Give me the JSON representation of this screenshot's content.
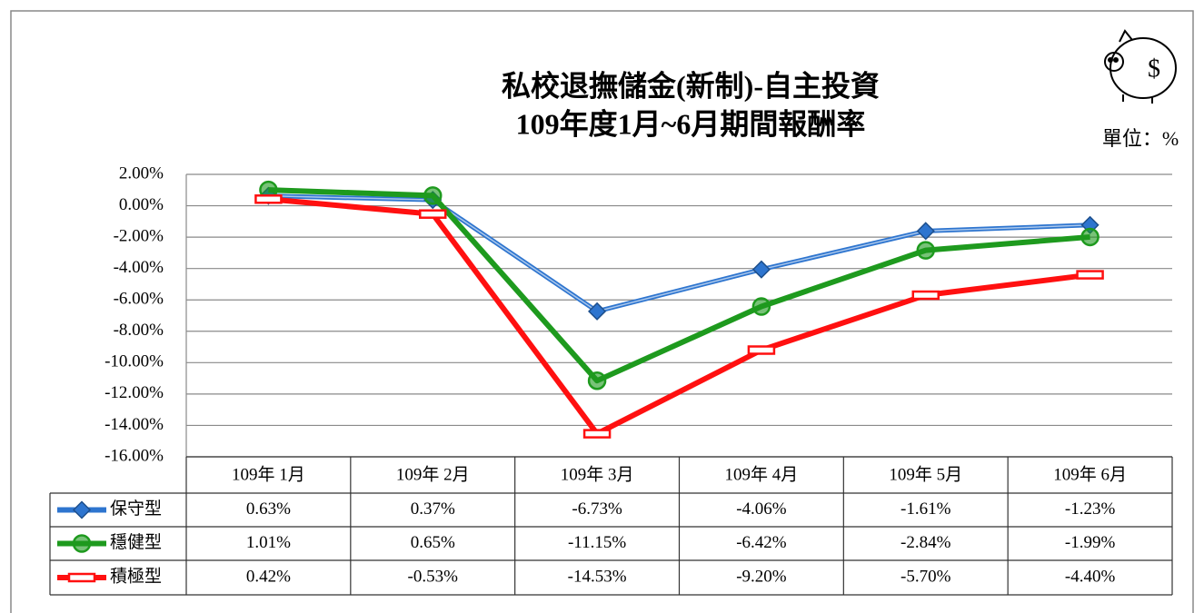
{
  "chart_data": {
    "type": "line",
    "title": "私校退撫儲金(新制)-自主投資",
    "subtitle": "109年度1月~6月期間報酬率",
    "unit_note": "單位：%",
    "categories": [
      "109年 1月",
      "109年 2月",
      "109年 3月",
      "109年 4月",
      "109年 5月",
      "109年 6月"
    ],
    "series": [
      {
        "name": "保守型",
        "color": "#2e75cf",
        "marker": "diamond",
        "values": [
          0.63,
          0.37,
          -6.73,
          -4.06,
          -1.61,
          -1.23
        ],
        "value_labels": [
          "0.63%",
          "0.37%",
          "-6.73%",
          "-4.06%",
          "-1.61%",
          "-1.23%"
        ]
      },
      {
        "name": "穩健型",
        "color": "#1e9a1e",
        "marker": "circle",
        "values": [
          1.01,
          0.65,
          -11.15,
          -6.42,
          -2.84,
          -1.99
        ],
        "value_labels": [
          "1.01%",
          "0.65%",
          "-11.15%",
          "-6.42%",
          "-2.84%",
          "-1.99%"
        ]
      },
      {
        "name": "積極型",
        "color": "#ff1010",
        "marker": "bar",
        "values": [
          0.42,
          -0.53,
          -14.53,
          -9.2,
          -5.7,
          -4.4
        ],
        "value_labels": [
          "0.42%",
          "-0.53%",
          "-14.53%",
          "-9.20%",
          "-5.70%",
          "-4.40%"
        ]
      }
    ],
    "ylim": [
      -16,
      2
    ],
    "yticks": [
      {
        "value": 2,
        "label": "2.00%"
      },
      {
        "value": 0,
        "label": "0.00%"
      },
      {
        "value": -2,
        "label": "-2.00%"
      },
      {
        "value": -4,
        "label": "-4.00%"
      },
      {
        "value": -6,
        "label": "-6.00%"
      },
      {
        "value": -8,
        "label": "-8.00%"
      },
      {
        "value": -10,
        "label": "-10.00%"
      },
      {
        "value": -12,
        "label": "-12.00%"
      },
      {
        "value": -14,
        "label": "-14.00%"
      },
      {
        "value": -16,
        "label": "-16.00%"
      }
    ],
    "grid": true,
    "data_table": true
  }
}
